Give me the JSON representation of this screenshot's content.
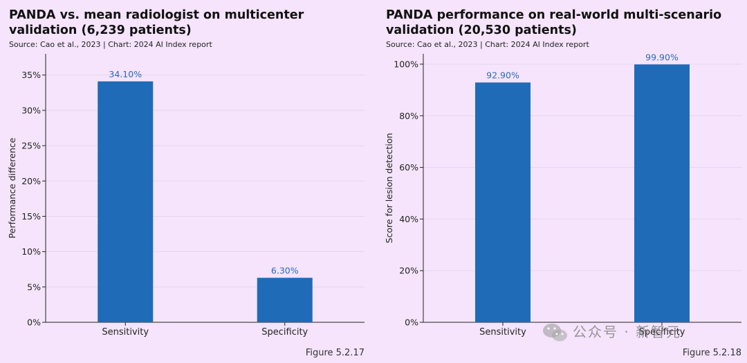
{
  "chart_data": [
    {
      "type": "bar",
      "title": "PANDA vs. mean radiologist on multicenter validation (6,239 patients)",
      "source": "Source: Cao et al., 2023 | Chart: 2024 AI Index report",
      "ylabel": "Performance difference",
      "xlabel": "",
      "categories": [
        "Sensitivity",
        "Specificity"
      ],
      "values": [
        34.1,
        6.3
      ],
      "value_labels": [
        "34.10%",
        "6.30%"
      ],
      "ylim": [
        0,
        38
      ],
      "yticks": [
        0,
        5,
        10,
        15,
        20,
        25,
        30,
        35
      ],
      "ytick_labels": [
        "0%",
        "5%",
        "10%",
        "15%",
        "20%",
        "25%",
        "30%",
        "35%"
      ],
      "grid": true,
      "bar_color": "#1f6bb8",
      "figure_label": "Figure 5.2.17"
    },
    {
      "type": "bar",
      "title": "PANDA performance on real-world multi-scenario validation (20,530 patients)",
      "source": "Source: Cao et al., 2023 | Chart: 2024 AI Index report",
      "ylabel": "Score for lesion detection",
      "xlabel": "",
      "categories": [
        "Sensitivity",
        "Specificity"
      ],
      "values": [
        92.9,
        99.9
      ],
      "value_labels": [
        "92.90%",
        "99.90%"
      ],
      "ylim": [
        0,
        104
      ],
      "yticks": [
        0,
        20,
        40,
        60,
        80,
        100
      ],
      "ytick_labels": [
        "0%",
        "20%",
        "40%",
        "60%",
        "80%",
        "100%"
      ],
      "grid": true,
      "bar_color": "#1f6bb8",
      "figure_label": "Figure 5.2.18"
    }
  ],
  "watermark": {
    "text": "公众号 · 新智元",
    "icon": "wechat-icon"
  },
  "colors": {
    "background": "#f5e4fb",
    "bar": "#1f6bb8",
    "data_label": "#2b6cb8"
  }
}
